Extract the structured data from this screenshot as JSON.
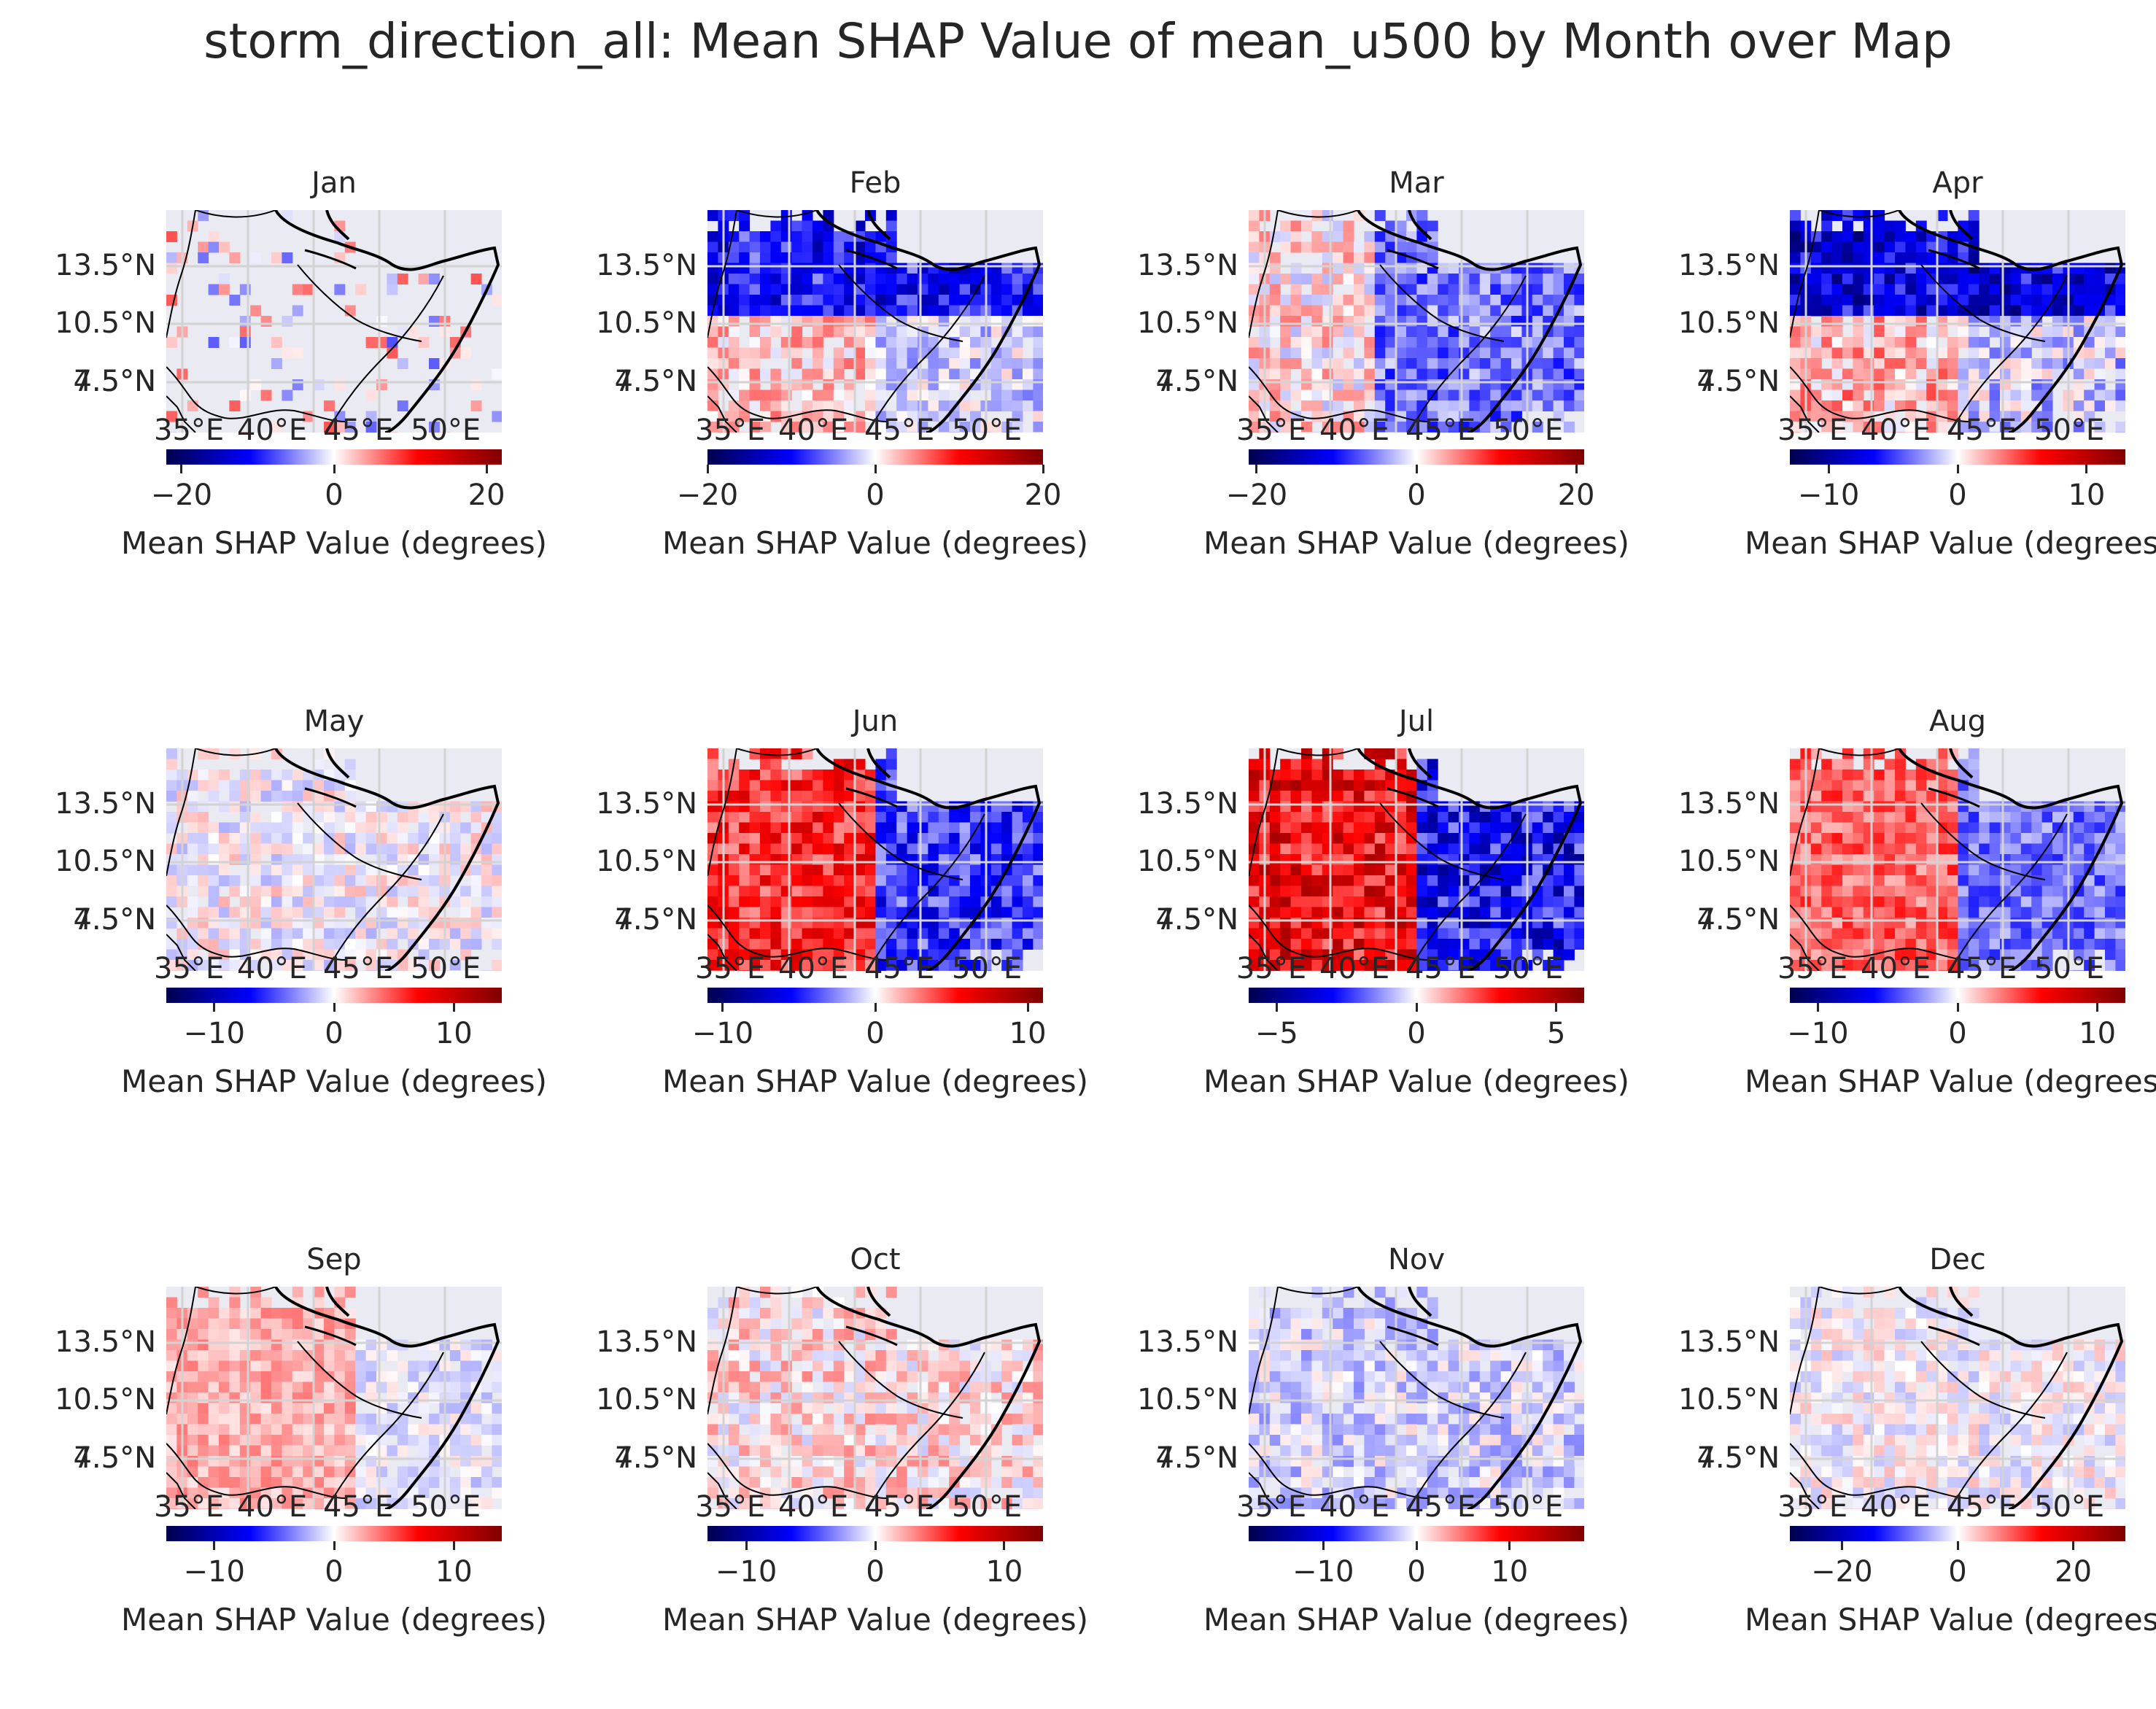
{
  "title": "storm_direction_all: Mean SHAP Value of mean_u500 by Month over Map",
  "lat_labels": [
    "13.5°N",
    "10.5°N",
    "7.5°N",
    "4.5°N"
  ],
  "lon_labels": [
    "35°E",
    "40°E",
    "45°E",
    "50°E"
  ],
  "colormap": "seismic",
  "colorbar_label": "Mean SHAP Value (degrees)",
  "colors": {
    "background": "#eaeaf2",
    "grid": "#d3d3d3",
    "coast": "#000000",
    "neg": "#0000ff",
    "pos": "#ff0000"
  },
  "panels": [
    {
      "month": "Jan",
      "vmax": 22,
      "ticks": [
        {
          "v": -20,
          "label": "−20"
        },
        {
          "v": 0,
          "label": "0"
        },
        {
          "v": 20,
          "label": "20"
        }
      ],
      "pattern": "sparse",
      "intensity": 0.5
    },
    {
      "month": "Feb",
      "vmax": 20,
      "ticks": [
        {
          "v": -20,
          "label": "−20"
        },
        {
          "v": 0,
          "label": "0"
        },
        {
          "v": 20,
          "label": "20"
        }
      ],
      "pattern": "north-blue",
      "intensity": 0.6
    },
    {
      "month": "Mar",
      "vmax": 21,
      "ticks": [
        {
          "v": -20,
          "label": "−20"
        },
        {
          "v": 0,
          "label": "0"
        },
        {
          "v": 20,
          "label": "20"
        }
      ],
      "pattern": "east-blue",
      "intensity": 0.6
    },
    {
      "month": "Apr",
      "vmax": 13,
      "ticks": [
        {
          "v": -10,
          "label": "−10"
        },
        {
          "v": 0,
          "label": "0"
        },
        {
          "v": 10,
          "label": "10"
        }
      ],
      "pattern": "north-blue",
      "intensity": 0.75
    },
    {
      "month": "May",
      "vmax": 14,
      "ticks": [
        {
          "v": -10,
          "label": "−10"
        },
        {
          "v": 0,
          "label": "0"
        },
        {
          "v": 10,
          "label": "10"
        }
      ],
      "pattern": "mixed",
      "intensity": 0.35
    },
    {
      "month": "Jun",
      "vmax": 11,
      "ticks": [
        {
          "v": -10,
          "label": "−10"
        },
        {
          "v": 0,
          "label": "0"
        },
        {
          "v": 10,
          "label": "10"
        }
      ],
      "pattern": "west-red-east-blue",
      "intensity": 0.8
    },
    {
      "month": "Jul",
      "vmax": 6,
      "ticks": [
        {
          "v": -5,
          "label": "−5"
        },
        {
          "v": 0,
          "label": "0"
        },
        {
          "v": 5,
          "label": "5"
        }
      ],
      "pattern": "west-red-east-blue",
      "intensity": 1.0
    },
    {
      "month": "Aug",
      "vmax": 12,
      "ticks": [
        {
          "v": -10,
          "label": "−10"
        },
        {
          "v": 0,
          "label": "0"
        },
        {
          "v": 10,
          "label": "10"
        }
      ],
      "pattern": "west-red-east-blue",
      "intensity": 0.55
    },
    {
      "month": "Sep",
      "vmax": 14,
      "ticks": [
        {
          "v": -10,
          "label": "−10"
        },
        {
          "v": 0,
          "label": "0"
        },
        {
          "v": 10,
          "label": "10"
        }
      ],
      "pattern": "west-red",
      "intensity": 0.45
    },
    {
      "month": "Oct",
      "vmax": 13,
      "ticks": [
        {
          "v": -10,
          "label": "−10"
        },
        {
          "v": 0,
          "label": "0"
        },
        {
          "v": 10,
          "label": "10"
        }
      ],
      "pattern": "mixed-red",
      "intensity": 0.45
    },
    {
      "month": "Nov",
      "vmax": 18,
      "ticks": [
        {
          "v": -10,
          "label": "−10"
        },
        {
          "v": 0,
          "label": "0"
        },
        {
          "v": 10,
          "label": "10"
        }
      ],
      "pattern": "mixed-blue",
      "intensity": 0.4
    },
    {
      "month": "Dec",
      "vmax": 29,
      "ticks": [
        {
          "v": -20,
          "label": "−20"
        },
        {
          "v": 0,
          "label": "0"
        },
        {
          "v": 20,
          "label": "20"
        }
      ],
      "pattern": "mixed",
      "intensity": 0.3
    }
  ]
}
